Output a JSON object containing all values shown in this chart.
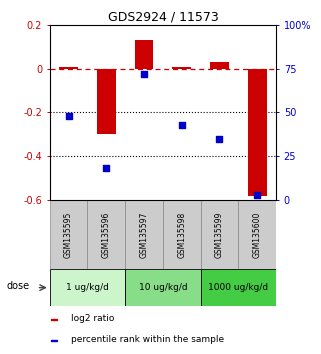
{
  "title": "GDS2924 / 11573",
  "samples": [
    "GSM135595",
    "GSM135596",
    "GSM135597",
    "GSM135598",
    "GSM135599",
    "GSM135600"
  ],
  "log2_ratio": [
    0.005,
    -0.3,
    0.13,
    0.005,
    0.03,
    -0.58
  ],
  "percentile_rank": [
    48,
    18,
    72,
    43,
    35,
    3
  ],
  "ylim_left": [
    -0.6,
    0.2
  ],
  "ylim_right": [
    0,
    100
  ],
  "yticks_left": [
    -0.6,
    -0.4,
    -0.2,
    0.0,
    0.2
  ],
  "yticks_right": [
    0,
    25,
    50,
    75,
    100
  ],
  "ytick_right_labels": [
    "0",
    "25",
    "50",
    "75",
    "100%"
  ],
  "hlines_dotted": [
    -0.2,
    -0.4
  ],
  "bar_color": "#cc0000",
  "dot_color": "#0000cc",
  "dose_groups": [
    {
      "label": "1 ug/kg/d",
      "cols": [
        0,
        1
      ],
      "color": "#ccf5cc"
    },
    {
      "label": "10 ug/kg/d",
      "cols": [
        2,
        3
      ],
      "color": "#88dd88"
    },
    {
      "label": "1000 ug/kg/d",
      "cols": [
        4,
        5
      ],
      "color": "#44cc44"
    }
  ],
  "legend_items": [
    {
      "label": "log2 ratio",
      "color": "#cc0000"
    },
    {
      "label": "percentile rank within the sample",
      "color": "#0000cc"
    }
  ],
  "dose_label": "dose",
  "bar_width": 0.5,
  "sample_bg": "#cccccc",
  "sample_border": "#888888"
}
